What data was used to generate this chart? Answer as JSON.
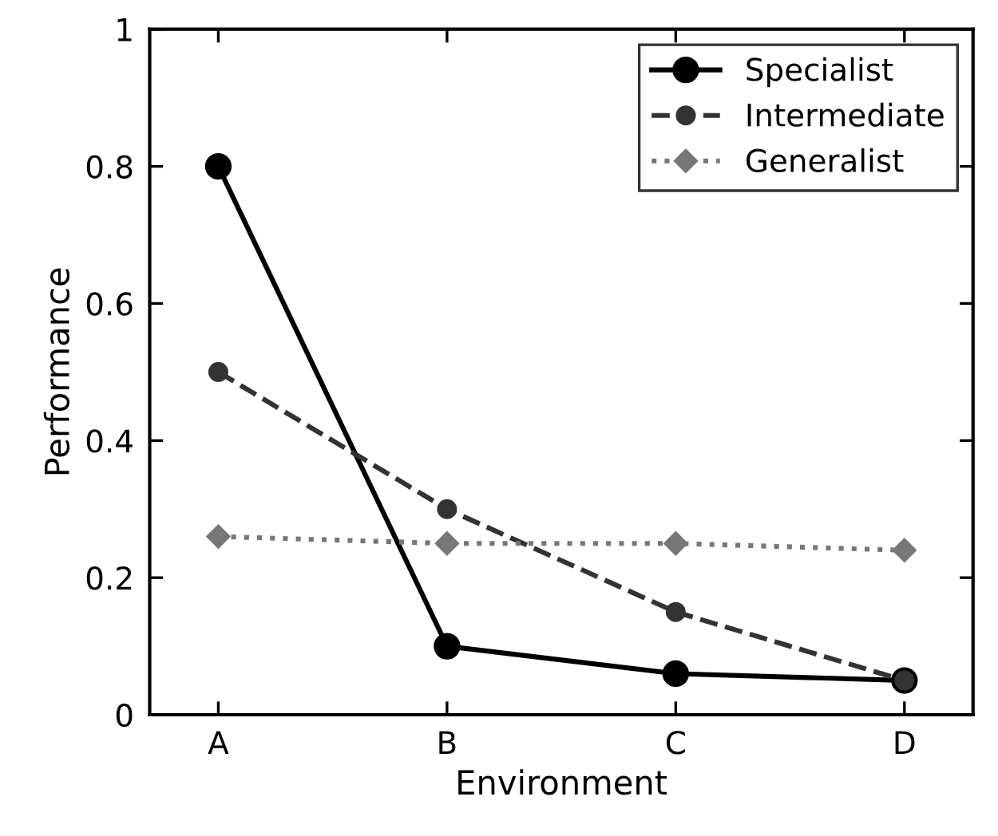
{
  "chart_data": {
    "type": "line",
    "xlabel": "Environment",
    "ylabel": "Performance",
    "categories": [
      "A",
      "B",
      "C",
      "D"
    ],
    "ylim": [
      0,
      1
    ],
    "yticks": [
      0,
      0.2,
      0.4,
      0.6,
      0.8,
      1
    ],
    "grid": false,
    "legend": "top right",
    "series": [
      {
        "name": "Specialist",
        "color": "#000000",
        "values": [
          0.8,
          0.1,
          0.06,
          0.05
        ],
        "marker": "circle",
        "line_style": "solid"
      },
      {
        "name": "Intermediate",
        "color": "#333333",
        "values": [
          0.5,
          0.3,
          0.15,
          0.05
        ],
        "marker": "circle",
        "line_style": "dashed"
      },
      {
        "name": "Generalist",
        "color": "#777777",
        "values": [
          0.26,
          0.25,
          0.25,
          0.24
        ],
        "marker": "diamond",
        "line_style": "dotted"
      }
    ]
  }
}
